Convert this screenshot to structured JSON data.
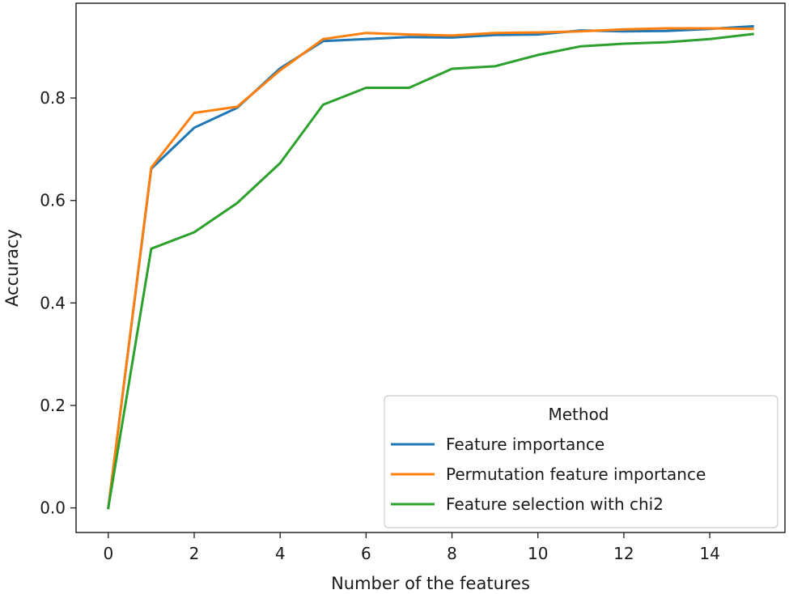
{
  "chart_data": {
    "type": "line",
    "title": "",
    "xlabel": "Number of the features",
    "ylabel": "Accuracy",
    "xlim": [
      -0.75,
      15.75
    ],
    "ylim": [
      -0.048,
      0.985
    ],
    "xticks": [
      0,
      2,
      4,
      6,
      8,
      10,
      12,
      14
    ],
    "xtick_labels": [
      "0",
      "2",
      "4",
      "6",
      "8",
      "10",
      "12",
      "14"
    ],
    "yticks": [
      0.0,
      0.2,
      0.4,
      0.6,
      0.8
    ],
    "ytick_labels": [
      "0.0",
      "0.2",
      "0.4",
      "0.6",
      "0.8"
    ],
    "grid": false,
    "legend": {
      "title": "Method",
      "position": "lower right"
    },
    "x": [
      0,
      1,
      2,
      3,
      4,
      5,
      6,
      7,
      8,
      9,
      10,
      11,
      12,
      13,
      14,
      15
    ],
    "series": [
      {
        "name": "Feature importance",
        "color": "#1f77b4",
        "values": [
          0.0,
          0.662,
          0.742,
          0.781,
          0.858,
          0.911,
          0.915,
          0.919,
          0.918,
          0.923,
          0.924,
          0.932,
          0.93,
          0.931,
          0.935,
          0.94
        ]
      },
      {
        "name": "Permutation feature importance",
        "color": "#ff7f0e",
        "values": [
          0.0,
          0.664,
          0.771,
          0.783,
          0.854,
          0.915,
          0.927,
          0.924,
          0.922,
          0.927,
          0.928,
          0.93,
          0.934,
          0.936,
          0.936,
          0.935
        ]
      },
      {
        "name": "Feature selection with chi2",
        "color": "#2ca02c",
        "values": [
          0.0,
          0.506,
          0.538,
          0.595,
          0.673,
          0.787,
          0.82,
          0.82,
          0.857,
          0.862,
          0.884,
          0.901,
          0.906,
          0.909,
          0.915,
          0.925
        ]
      }
    ]
  }
}
